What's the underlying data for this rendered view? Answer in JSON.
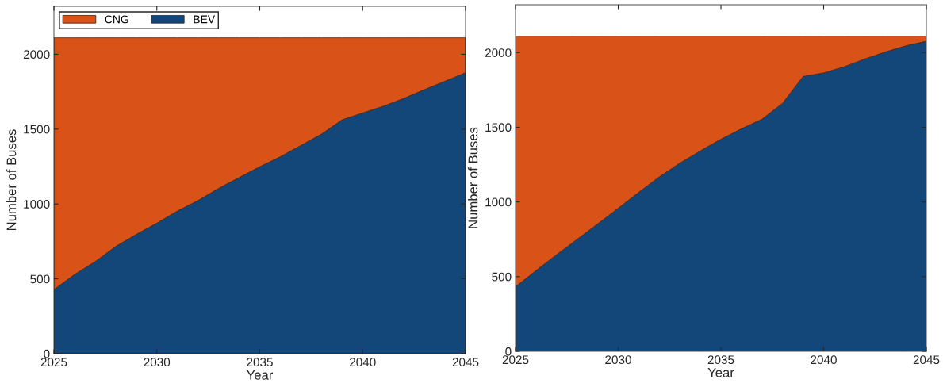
{
  "chart_data": [
    {
      "type": "area",
      "stacked": true,
      "xlabel": "Year",
      "ylabel": "Number of Buses",
      "x": [
        2025,
        2026,
        2027,
        2028,
        2029,
        2030,
        2031,
        2032,
        2033,
        2034,
        2035,
        2036,
        2037,
        2038,
        2039,
        2040,
        2041,
        2042,
        2043,
        2044,
        2045
      ],
      "series": [
        {
          "name": "BEV",
          "color": "#134779",
          "values": [
            428,
            529,
            615,
            716,
            797,
            872,
            953,
            1023,
            1104,
            1177,
            1249,
            1316,
            1391,
            1467,
            1562,
            1608,
            1653,
            1705,
            1764,
            1820,
            1877
          ]
        },
        {
          "name": "CNG",
          "color": "#d95319",
          "values": [
            1682,
            1581,
            1495,
            1394,
            1313,
            1238,
            1157,
            1087,
            1006,
            933,
            861,
            794,
            719,
            643,
            548,
            502,
            457,
            405,
            346,
            290,
            233
          ]
        }
      ],
      "xlim": [
        2025,
        2045
      ],
      "xticks": [
        2025,
        2030,
        2035,
        2040,
        2045
      ],
      "ylim": [
        0,
        2320
      ],
      "yticks": [
        0,
        500,
        1000,
        1500,
        2000
      ],
      "legend": "top left",
      "grid": false
    },
    {
      "type": "area",
      "stacked": true,
      "xlabel": "Year",
      "ylabel": "Number of Buses",
      "x": [
        2025,
        2026,
        2027,
        2028,
        2029,
        2030,
        2031,
        2032,
        2033,
        2034,
        2035,
        2036,
        2037,
        2038,
        2039,
        2040,
        2041,
        2042,
        2043,
        2044,
        2045
      ],
      "series": [
        {
          "color": "#134779",
          "values": [
            432,
            541,
            647,
            750,
            853,
            958,
            1065,
            1168,
            1260,
            1342,
            1420,
            1490,
            1554,
            1661,
            1840,
            1864,
            1905,
            1957,
            2004,
            2045,
            2076
          ]
        },
        {
          "color": "#d95319",
          "values": [
            1678,
            1569,
            1463,
            1360,
            1257,
            1152,
            1045,
            942,
            850,
            768,
            690,
            620,
            556,
            449,
            270,
            246,
            205,
            153,
            106,
            65,
            34
          ]
        }
      ],
      "xlim": [
        2025,
        2045
      ],
      "xticks": [
        2025,
        2030,
        2035,
        2040,
        2045
      ],
      "ylim": [
        0,
        2320
      ],
      "yticks": [
        0,
        500,
        1000,
        1500,
        2000
      ],
      "legend": false,
      "grid": false
    }
  ]
}
